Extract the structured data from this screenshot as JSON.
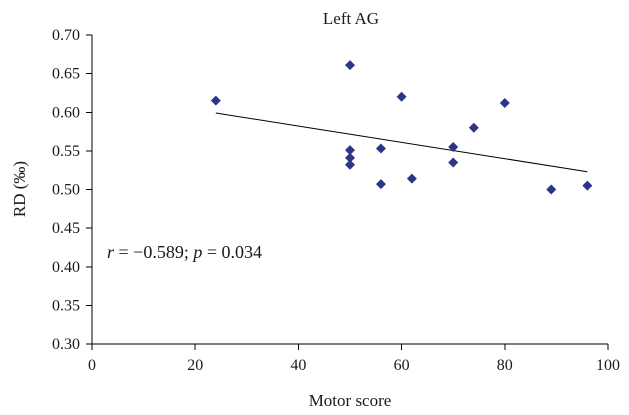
{
  "chart_data": {
    "type": "scatter",
    "title": "Left AG",
    "xlabel": "Motor score",
    "ylabel": "RD (‰)",
    "xlim": [
      0,
      100
    ],
    "ylim": [
      0.3,
      0.7
    ],
    "x_ticks": [
      0,
      20,
      40,
      60,
      80,
      100
    ],
    "x_tick_labels": [
      "0",
      "20",
      "40",
      "60",
      "80",
      "100"
    ],
    "y_ticks": [
      0.3,
      0.35,
      0.4,
      0.45,
      0.5,
      0.55,
      0.6,
      0.65,
      0.7
    ],
    "y_tick_labels": [
      "0.30",
      "0.35",
      "0.40",
      "0.45",
      "0.50",
      "0.55",
      "0.60",
      "0.65",
      "0.70"
    ],
    "grid": false,
    "marker_color": "#2e3487",
    "line_color": "#000000",
    "points": [
      {
        "x": 24,
        "y": 0.615
      },
      {
        "x": 50,
        "y": 0.661
      },
      {
        "x": 50,
        "y": 0.551
      },
      {
        "x": 50,
        "y": 0.541
      },
      {
        "x": 50,
        "y": 0.532
      },
      {
        "x": 56,
        "y": 0.553
      },
      {
        "x": 56,
        "y": 0.507
      },
      {
        "x": 60,
        "y": 0.62
      },
      {
        "x": 62,
        "y": 0.514
      },
      {
        "x": 70,
        "y": 0.555
      },
      {
        "x": 70,
        "y": 0.535
      },
      {
        "x": 74,
        "y": 0.58
      },
      {
        "x": 80,
        "y": 0.612
      },
      {
        "x": 89,
        "y": 0.5
      },
      {
        "x": 96,
        "y": 0.505
      }
    ],
    "trendline": {
      "x": [
        24,
        96
      ],
      "y": [
        0.599,
        0.523
      ]
    },
    "annotation": {
      "r_symbol": "r",
      "r_text": " = −0.589; ",
      "p_symbol": "p",
      "p_text": " = 0.034"
    }
  }
}
